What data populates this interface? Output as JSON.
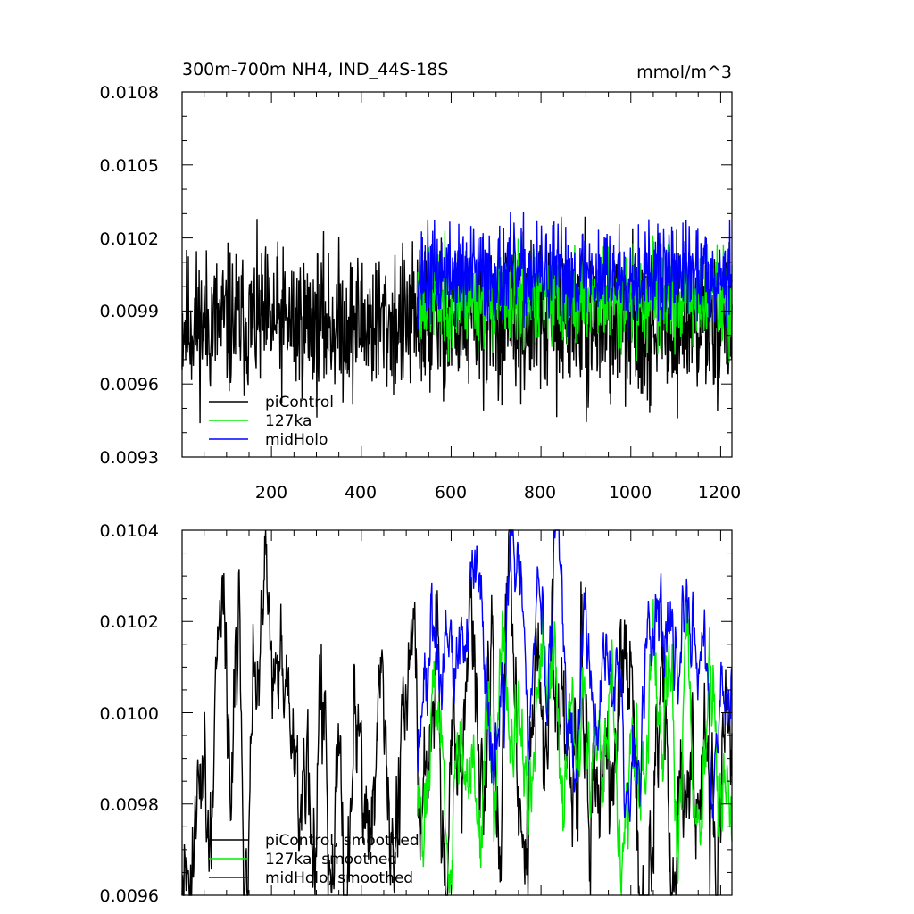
{
  "title_left": "300m-700m NH4, IND_44S-18S",
  "title_right": "mmol/m^3",
  "colors": {
    "piControl": "#000000",
    "ka127": "#00ee00",
    "midHolo": "#0000ff"
  },
  "chart_data": [
    {
      "type": "line",
      "xlim": [
        1,
        1225
      ],
      "ylim": [
        0.0093,
        0.0108
      ],
      "yticks": [
        "0.0093",
        "0.0096",
        "0.0099",
        "0.0102",
        "0.0105",
        "0.0108"
      ],
      "xticks": [
        "200",
        "400",
        "600",
        "800",
        "1000",
        "1200"
      ],
      "legend_position": "bottom-left",
      "series": [
        {
          "name": "piControl",
          "color": "#000000",
          "x_range": [
            1,
            1225
          ],
          "mean": 0.00985,
          "amplitude": 0.00045,
          "seed": 11
        },
        {
          "name": "127ka",
          "color": "#00ee00",
          "x_range": [
            525,
            1225
          ],
          "mean": 0.00995,
          "amplitude": 0.0003,
          "seed": 23
        },
        {
          "name": "midHolo",
          "color": "#0000ff",
          "x_range": [
            525,
            1225
          ],
          "mean": 0.01005,
          "amplitude": 0.0003,
          "seed": 37
        }
      ]
    },
    {
      "type": "line",
      "xlim": [
        1,
        1225
      ],
      "ylim": [
        0.0096,
        0.0104
      ],
      "yticks": [
        "0.0096",
        "0.0098",
        "0.0100",
        "0.0102",
        "0.0104"
      ],
      "xticks": [
        "200",
        "400",
        "600",
        "800",
        "1000",
        "1200"
      ],
      "legend_position": "bottom-left",
      "series": [
        {
          "name": "piControl, smoothed",
          "color": "#000000",
          "x_range": [
            1,
            1225
          ],
          "mean": 0.00988,
          "amplitude": 0.00055,
          "seed": 11
        },
        {
          "name": "127ka, smoothed",
          "color": "#00ee00",
          "x_range": [
            525,
            1225
          ],
          "mean": 0.00993,
          "amplitude": 0.00035,
          "seed": 23
        },
        {
          "name": "midHolo, smoothed",
          "color": "#0000ff",
          "x_range": [
            525,
            1225
          ],
          "mean": 0.01012,
          "amplitude": 0.0004,
          "seed": 37
        }
      ]
    }
  ]
}
